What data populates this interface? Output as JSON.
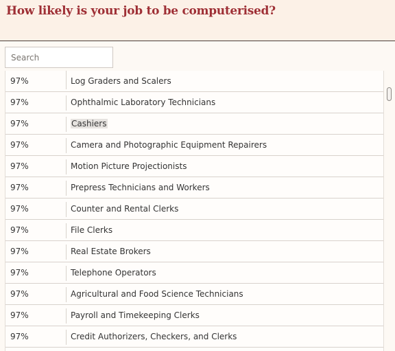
{
  "header": {
    "title": "How likely is your job to be computerised?"
  },
  "search": {
    "placeholder": "Search",
    "value": ""
  },
  "table": {
    "rows": [
      {
        "probability": "97%",
        "job": "Log Graders and Scalers",
        "highlighted": false
      },
      {
        "probability": "97%",
        "job": "Ophthalmic Laboratory Technicians",
        "highlighted": false
      },
      {
        "probability": "97%",
        "job": "Cashiers",
        "highlighted": true
      },
      {
        "probability": "97%",
        "job": "Camera and Photographic Equipment Repairers",
        "highlighted": false
      },
      {
        "probability": "97%",
        "job": "Motion Picture Projectionists",
        "highlighted": false
      },
      {
        "probability": "97%",
        "job": "Prepress Technicians and Workers",
        "highlighted": false
      },
      {
        "probability": "97%",
        "job": "Counter and Rental Clerks",
        "highlighted": false
      },
      {
        "probability": "97%",
        "job": "File Clerks",
        "highlighted": false
      },
      {
        "probability": "97%",
        "job": "Real Estate Brokers",
        "highlighted": false
      },
      {
        "probability": "97%",
        "job": "Telephone Operators",
        "highlighted": false
      },
      {
        "probability": "97%",
        "job": "Agricultural and Food Science Technicians",
        "highlighted": false
      },
      {
        "probability": "97%",
        "job": "Payroll and Timekeeping Clerks",
        "highlighted": false
      },
      {
        "probability": "97%",
        "job": "Credit Authorizers, Checkers, and Clerks",
        "highlighted": false
      }
    ]
  },
  "colors": {
    "title": "#9e2f35",
    "header_bg": "#fcf1e7",
    "highlight": "#e6e3e0"
  }
}
